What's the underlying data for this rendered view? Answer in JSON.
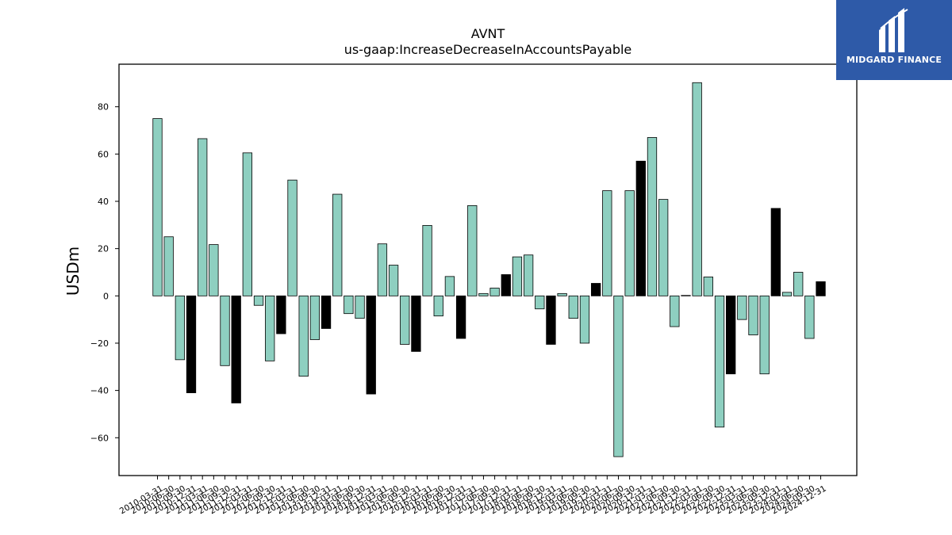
{
  "chart_data": {
    "type": "bar",
    "title": "AVNT",
    "subtitle": "us-gaap:IncreaseDecreaseInAccountsPayable",
    "xlabel": "",
    "ylabel": "USDm",
    "ylim": [
      -76,
      98
    ],
    "yticks": [
      -60,
      -40,
      -20,
      0,
      20,
      40,
      60,
      80
    ],
    "grid": false,
    "legend": "none",
    "colors": {
      "quarterly": "#8ecfc0",
      "annual": "#000000",
      "edge": "#000000"
    },
    "categories": [
      "2010-03-31",
      "2010-06-30",
      "2010-09-30",
      "2010-12-31",
      "2011-03-31",
      "2011-06-30",
      "2011-09-30",
      "2011-12-31",
      "2012-03-31",
      "2012-06-30",
      "2012-09-30",
      "2012-12-31",
      "2013-03-31",
      "2013-06-30",
      "2013-09-30",
      "2013-12-31",
      "2014-03-31",
      "2014-06-30",
      "2014-09-30",
      "2014-12-31",
      "2015-03-31",
      "2015-06-30",
      "2015-09-30",
      "2015-12-31",
      "2016-03-31",
      "2016-06-30",
      "2016-09-30",
      "2016-12-31",
      "2017-03-31",
      "2017-06-30",
      "2017-09-30",
      "2017-12-31",
      "2018-03-31",
      "2018-06-30",
      "2018-09-30",
      "2018-12-31",
      "2019-03-31",
      "2019-06-30",
      "2019-09-30",
      "2019-12-31",
      "2020-03-31",
      "2020-06-30",
      "2020-09-30",
      "2020-12-31",
      "2021-03-31",
      "2021-06-30",
      "2021-09-30",
      "2021-12-31",
      "2022-03-31",
      "2022-06-30",
      "2022-09-30",
      "2022-12-31",
      "2023-03-31",
      "2023-06-30",
      "2023-09-30",
      "2023-12-31",
      "2024-03-31",
      "2024-06-30",
      "2024-09-30",
      "2024-12-31"
    ],
    "values": [
      75,
      25,
      -27,
      -41,
      66.5,
      21.7,
      -29.5,
      -45.3,
      60.5,
      -4,
      -27.5,
      -16,
      49,
      -34,
      -18.5,
      -13.8,
      43,
      -7.5,
      -9.5,
      -41.5,
      22,
      13,
      -20.5,
      -23.5,
      29.8,
      -8.5,
      8.2,
      -18,
      38.2,
      1,
      3.3,
      9,
      16.5,
      17.3,
      -5.5,
      -20.5,
      1,
      -9.5,
      -20,
      5.3,
      44.5,
      -68,
      44.5,
      57,
      67,
      40.8,
      -13,
      0.2,
      90.2,
      8,
      -55.5,
      -33,
      -10,
      -16.5,
      -33,
      37,
      1.5,
      10,
      -18,
      6
    ],
    "series_type": [
      "q",
      "q",
      "q",
      "a",
      "q",
      "q",
      "q",
      "a",
      "q",
      "q",
      "q",
      "a",
      "q",
      "q",
      "q",
      "a",
      "q",
      "q",
      "q",
      "a",
      "q",
      "q",
      "q",
      "a",
      "q",
      "q",
      "q",
      "a",
      "q",
      "q",
      "q",
      "a",
      "q",
      "q",
      "q",
      "a",
      "q",
      "q",
      "q",
      "a",
      "q",
      "q",
      "q",
      "a",
      "q",
      "q",
      "q",
      "a",
      "q",
      "q",
      "q",
      "a",
      "q",
      "q",
      "q",
      "a",
      "q",
      "q",
      "q",
      "a"
    ]
  },
  "logo": {
    "text": "MIDGARD FINANCE",
    "icon": "midgard-logo-icon",
    "bg": "#2e5aa8"
  }
}
